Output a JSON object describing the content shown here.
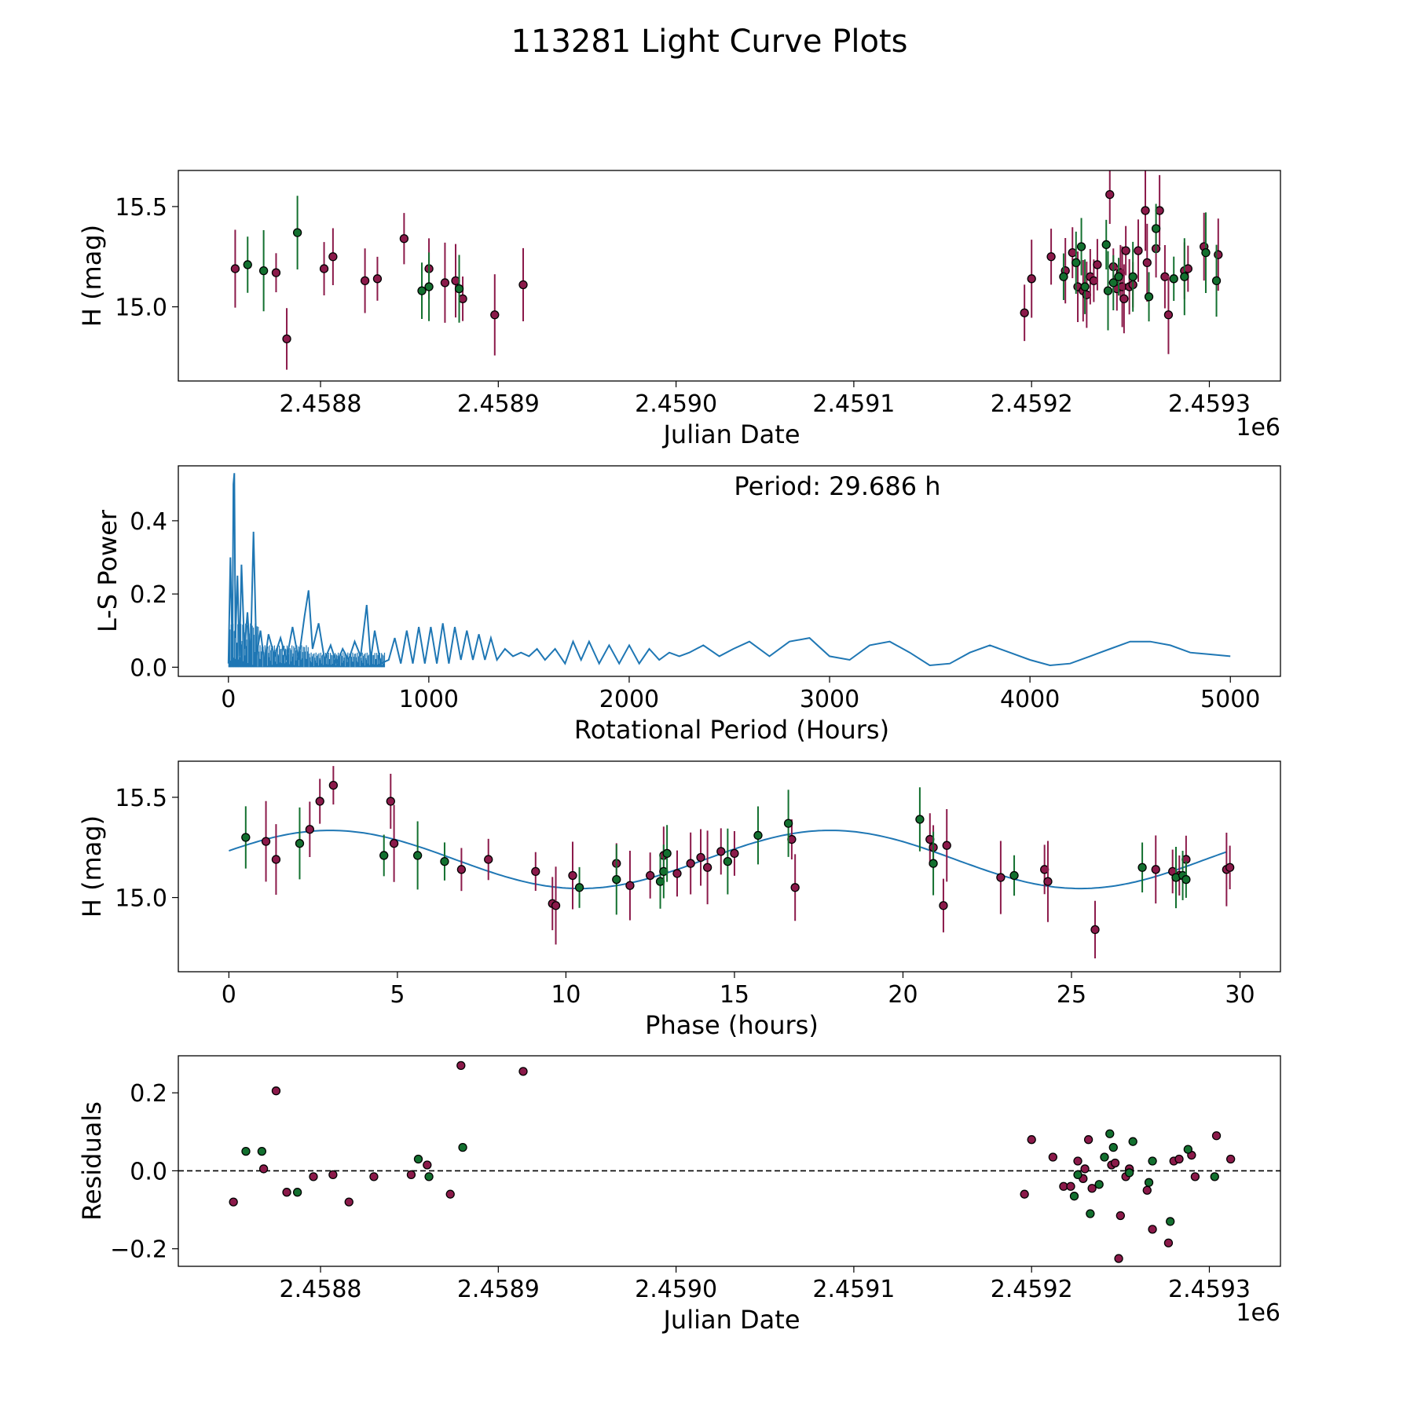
{
  "title": "113281 Light Curve Plots",
  "colors": {
    "filter_r": "#8b1a4a",
    "filter_g": "#13702f",
    "model": "#1f77b4",
    "marker_edge": "#000000",
    "zero_line": "#000000"
  },
  "chart_data": [
    {
      "id": "light-curve",
      "type": "scatter",
      "xlabel": "Julian Date",
      "ylabel": "H (mag)",
      "x_offset_label": "1e6",
      "xlim": [
        2.45872,
        2.45934
      ],
      "ylim": [
        14.63,
        15.68
      ],
      "xticks": [
        2.4588,
        2.4589,
        2.459,
        2.4591,
        2.4592,
        2.4593
      ],
      "xtick_labels": [
        "2.4588",
        "2.4589",
        "2.4590",
        "2.4591",
        "2.4592",
        "2.4593"
      ],
      "yticks": [
        15.0,
        15.5
      ],
      "ytick_labels": [
        "15.0",
        "15.5"
      ],
      "series": [
        {
          "name": "r",
          "color": "#8b1a4a",
          "x": [
            2.458752,
            2.458775,
            2.458781,
            2.458802,
            2.458807,
            2.458825,
            2.458832,
            2.458847,
            2.458861,
            2.45887,
            2.458876,
            2.45888,
            2.458898,
            2.458914,
            2.459196,
            2.4592,
            2.459211,
            2.459219,
            2.459223,
            2.459226,
            2.459229,
            2.459231,
            2.459233,
            2.459235,
            2.459237,
            2.459244,
            2.459246,
            2.459248,
            2.45925,
            2.459251,
            2.459252,
            2.459253,
            2.459255,
            2.459257,
            2.45926,
            2.459264,
            2.459265,
            2.45927,
            2.459272,
            2.459275,
            2.459277,
            2.459286,
            2.459288,
            2.459297,
            2.459305
          ],
          "y": [
            15.19,
            15.17,
            14.84,
            15.19,
            15.25,
            15.13,
            15.14,
            15.34,
            15.19,
            15.12,
            15.13,
            15.04,
            14.96,
            15.11,
            14.97,
            15.14,
            15.25,
            15.18,
            15.27,
            15.1,
            15.08,
            15.06,
            15.15,
            15.13,
            15.21,
            15.56,
            15.2,
            15.09,
            15.17,
            15.1,
            15.04,
            15.28,
            15.1,
            15.11,
            15.28,
            15.48,
            15.22,
            15.29,
            15.48,
            15.15,
            14.96,
            15.18,
            15.19,
            15.3,
            15.26
          ]
        },
        {
          "name": "g",
          "color": "#13702f",
          "x": [
            2.458759,
            2.458768,
            2.458787,
            2.458857,
            2.458861,
            2.458878,
            2.459218,
            2.459225,
            2.459228,
            2.45923,
            2.459242,
            2.459243,
            2.459246,
            2.459249,
            2.459257,
            2.459266,
            2.45927,
            2.45928,
            2.459286,
            2.459298,
            2.459304
          ],
          "y": [
            15.21,
            15.18,
            15.37,
            15.08,
            15.1,
            15.09,
            15.15,
            15.22,
            15.3,
            15.1,
            15.31,
            15.08,
            15.12,
            15.15,
            15.15,
            15.05,
            15.39,
            15.14,
            15.15,
            15.27,
            15.13
          ]
        }
      ]
    },
    {
      "id": "periodogram",
      "type": "line",
      "xlabel": "Rotational Period (Hours)",
      "ylabel": "L-S Power",
      "xlim": [
        -250,
        5250
      ],
      "ylim": [
        -0.025,
        0.55
      ],
      "xticks": [
        0,
        1000,
        2000,
        3000,
        4000,
        5000
      ],
      "xtick_labels": [
        "0",
        "1000",
        "2000",
        "3000",
        "4000",
        "5000"
      ],
      "yticks": [
        0.0,
        0.2,
        0.4
      ],
      "ytick_labels": [
        "0.0",
        "0.2",
        "0.4"
      ],
      "annotation": "Period: 29.686 h",
      "x": [
        0,
        10,
        20,
        25,
        29.7,
        35,
        45,
        55,
        65,
        80,
        95,
        110,
        125,
        140,
        160,
        180,
        200,
        230,
        260,
        290,
        320,
        350,
        380,
        400,
        420,
        450,
        480,
        510,
        540,
        570,
        600,
        630,
        660,
        690,
        710,
        730,
        760,
        800,
        830,
        860,
        890,
        920,
        950,
        980,
        1010,
        1040,
        1070,
        1100,
        1130,
        1160,
        1190,
        1220,
        1250,
        1280,
        1310,
        1340,
        1380,
        1420,
        1460,
        1500,
        1540,
        1580,
        1630,
        1680,
        1720,
        1760,
        1800,
        1850,
        1900,
        1950,
        2000,
        2050,
        2100,
        2150,
        2200,
        2250,
        2300,
        2370,
        2450,
        2520,
        2600,
        2700,
        2800,
        2900,
        3000,
        3100,
        3200,
        3300,
        3400,
        3500,
        3600,
        3700,
        3800,
        3900,
        4000,
        4100,
        4200,
        4300,
        4400,
        4500,
        4600,
        4700,
        4800,
        4900,
        5000
      ],
      "y": [
        0.01,
        0.3,
        0.04,
        0.5,
        0.53,
        0.08,
        0.25,
        0.03,
        0.28,
        0.05,
        0.15,
        0.02,
        0.37,
        0.03,
        0.1,
        0.01,
        0.09,
        0.03,
        0.08,
        0.02,
        0.11,
        0.02,
        0.14,
        0.21,
        0.05,
        0.12,
        0.02,
        0.06,
        0.01,
        0.05,
        0.02,
        0.07,
        0.03,
        0.17,
        0.02,
        0.1,
        0.01,
        0.02,
        0.08,
        0.01,
        0.1,
        0.01,
        0.11,
        0.01,
        0.11,
        0.01,
        0.12,
        0.01,
        0.11,
        0.02,
        0.1,
        0.02,
        0.09,
        0.02,
        0.08,
        0.02,
        0.05,
        0.03,
        0.04,
        0.03,
        0.05,
        0.02,
        0.05,
        0.01,
        0.07,
        0.02,
        0.07,
        0.01,
        0.06,
        0.01,
        0.06,
        0.01,
        0.05,
        0.02,
        0.04,
        0.03,
        0.04,
        0.06,
        0.03,
        0.05,
        0.07,
        0.03,
        0.07,
        0.08,
        0.03,
        0.02,
        0.06,
        0.07,
        0.04,
        0.005,
        0.01,
        0.04,
        0.06,
        0.04,
        0.02,
        0.005,
        0.01,
        0.03,
        0.05,
        0.07,
        0.07,
        0.06,
        0.04,
        0.035,
        0.03
      ]
    },
    {
      "id": "phased-curve",
      "type": "scatter",
      "xlabel": "Phase (hours)",
      "ylabel": "H (mag)",
      "xlim": [
        -1.5,
        31.2
      ],
      "ylim": [
        14.63,
        15.68
      ],
      "xticks": [
        0,
        5,
        10,
        15,
        20,
        25,
        30
      ],
      "xtick_labels": [
        "0",
        "5",
        "10",
        "15",
        "20",
        "25",
        "30"
      ],
      "yticks": [
        15.0,
        15.5
      ],
      "ytick_labels": [
        "15.0",
        "15.5"
      ],
      "model_period_h": 29.686,
      "model_mean": 15.19,
      "model_amplitude": 0.145,
      "model_peak_phase": 3.0,
      "series": [
        {
          "name": "r",
          "color": "#8b1a4a",
          "x": [
            1.1,
            1.4,
            2.4,
            2.7,
            3.1,
            4.8,
            4.9,
            6.9,
            7.7,
            9.1,
            9.6,
            9.7,
            10.2,
            11.5,
            11.9,
            12.5,
            12.9,
            13.3,
            13.7,
            14.0,
            14.2,
            14.6,
            15.0,
            16.7,
            16.8,
            20.8,
            20.9,
            21.2,
            21.3,
            22.9,
            24.2,
            24.3,
            25.7,
            27.5,
            28.0,
            28.2,
            28.4,
            29.6,
            29.7
          ],
          "y": [
            15.28,
            15.19,
            15.34,
            15.48,
            15.56,
            15.48,
            15.27,
            15.14,
            15.19,
            15.13,
            14.97,
            14.96,
            15.11,
            15.17,
            15.06,
            15.11,
            15.21,
            15.12,
            15.17,
            15.2,
            15.15,
            15.23,
            15.22,
            15.29,
            15.05,
            15.29,
            15.25,
            14.96,
            15.26,
            15.1,
            15.14,
            15.08,
            14.84,
            15.14,
            15.13,
            15.11,
            15.19,
            15.14,
            15.15
          ]
        },
        {
          "name": "g",
          "color": "#13702f",
          "x": [
            0.5,
            2.1,
            4.6,
            5.6,
            6.4,
            10.4,
            11.5,
            12.8,
            12.9,
            13.0,
            14.8,
            15.7,
            16.6,
            20.5,
            20.9,
            23.3,
            27.1,
            28.1,
            28.3,
            28.4
          ],
          "y": [
            15.3,
            15.27,
            15.21,
            15.21,
            15.18,
            15.05,
            15.09,
            15.08,
            15.13,
            15.22,
            15.18,
            15.31,
            15.37,
            15.39,
            15.17,
            15.11,
            15.15,
            15.1,
            15.11,
            15.09
          ]
        }
      ]
    },
    {
      "id": "residuals",
      "type": "scatter",
      "xlabel": "Julian Date",
      "ylabel": "Residuals",
      "x_offset_label": "1e6",
      "xlim": [
        2.45872,
        2.45934
      ],
      "ylim": [
        -0.245,
        0.295
      ],
      "xticks": [
        2.4588,
        2.4589,
        2.459,
        2.4591,
        2.4592,
        2.4593
      ],
      "xtick_labels": [
        "2.4588",
        "2.4589",
        "2.4590",
        "2.4591",
        "2.4592",
        "2.4593"
      ],
      "yticks": [
        -0.2,
        0.0,
        0.2
      ],
      "ytick_labels": [
        "−0.2",
        "0.0",
        "0.2"
      ],
      "zero_line": 0.0,
      "series": [
        {
          "name": "r",
          "color": "#8b1a4a",
          "x": [
            2.458751,
            2.458768,
            2.458775,
            2.458781,
            2.458796,
            2.458807,
            2.458816,
            2.45883,
            2.458851,
            2.45886,
            2.458873,
            2.458914,
            2.458879,
            2.459196,
            2.4592,
            2.459212,
            2.459218,
            2.459222,
            2.459226,
            2.459229,
            2.45923,
            2.459232,
            2.459234,
            2.459245,
            2.459247,
            2.459249,
            2.45925,
            2.459253,
            2.459255,
            2.459265,
            2.459268,
            2.459277,
            2.45928,
            2.459283,
            2.45929,
            2.459292,
            2.459304,
            2.459312
          ],
          "y": [
            -0.08,
            0.005,
            0.205,
            -0.055,
            -0.015,
            -0.01,
            -0.08,
            -0.015,
            -0.01,
            0.015,
            -0.06,
            0.255,
            0.27,
            -0.06,
            0.08,
            0.035,
            -0.04,
            -0.04,
            0.025,
            -0.02,
            0.005,
            0.08,
            -0.045,
            0.015,
            0.02,
            -0.225,
            -0.115,
            -0.015,
            0.005,
            -0.05,
            -0.15,
            -0.185,
            0.025,
            0.03,
            0.04,
            -0.015,
            0.09,
            0.03
          ]
        },
        {
          "name": "g",
          "color": "#13702f",
          "x": [
            2.458758,
            2.458767,
            2.458787,
            2.458855,
            2.458861,
            2.45888,
            2.459224,
            2.459226,
            2.459233,
            2.459238,
            2.459241,
            2.459244,
            2.459246,
            2.459255,
            2.459257,
            2.459266,
            2.459268,
            2.459278,
            2.459288,
            2.459303
          ],
          "y": [
            0.05,
            0.05,
            -0.055,
            0.03,
            -0.015,
            0.06,
            -0.065,
            -0.01,
            -0.11,
            -0.035,
            0.035,
            0.095,
            0.06,
            -0.005,
            0.075,
            -0.03,
            0.025,
            -0.13,
            0.055,
            -0.015
          ]
        }
      ]
    }
  ]
}
